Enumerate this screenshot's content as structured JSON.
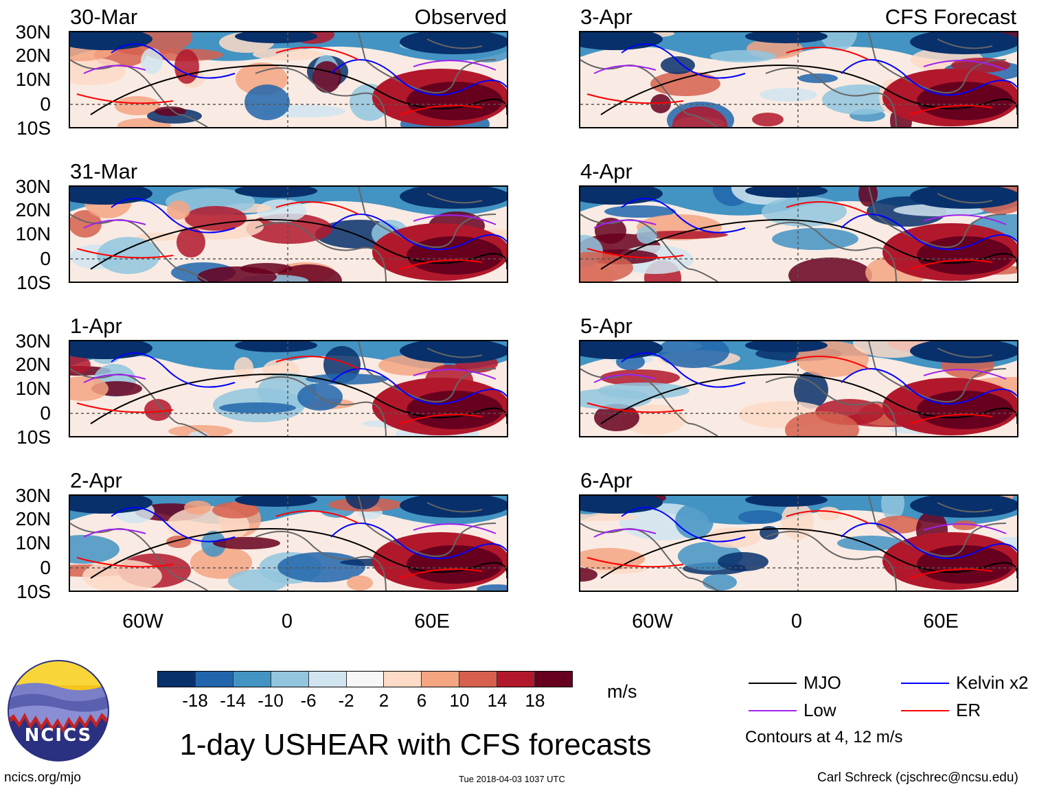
{
  "observed_label": "Observed",
  "forecast_label": "CFS Forecast",
  "panels_left": [
    {
      "date": "30-Mar"
    },
    {
      "date": "31-Mar"
    },
    {
      "date": "1-Apr"
    },
    {
      "date": "2-Apr"
    }
  ],
  "panels_right": [
    {
      "date": "3-Apr"
    },
    {
      "date": "4-Apr"
    },
    {
      "date": "5-Apr"
    },
    {
      "date": "6-Apr"
    }
  ],
  "lat_ticks": [
    "30N",
    "20N",
    "10N",
    "0",
    "10S"
  ],
  "lon_ticks": [
    "60W",
    "0",
    "60E"
  ],
  "colorbar": {
    "units": "m/s",
    "labels": [
      "-18",
      "-14",
      "-10",
      "-6",
      "-2",
      "2",
      "6",
      "10",
      "14",
      "18"
    ],
    "colors": [
      "#08306b",
      "#2166ac",
      "#4393c3",
      "#92c5de",
      "#d1e5f0",
      "#f7f7f7",
      "#fddbc7",
      "#f4a582",
      "#d6604d",
      "#b2182b",
      "#67001f"
    ]
  },
  "legend": {
    "items": [
      {
        "label": "MJO",
        "color": "#000000"
      },
      {
        "label": "Kelvin x2",
        "color": "#0000ff"
      },
      {
        "label": "Low",
        "color": "#a020f0"
      },
      {
        "label": "ER",
        "color": "#ff0000"
      }
    ],
    "note": "Contours at 4, 12 m/s"
  },
  "title": "1-day USHEAR with CFS forecasts",
  "logo_text": "NCICS",
  "footer": {
    "url": "ncics.org/mjo",
    "timestamp": "Tue 2018-04-03 1037 UTC",
    "credit": "Carl Schreck (cjschrec@ncsu.edu)"
  }
}
